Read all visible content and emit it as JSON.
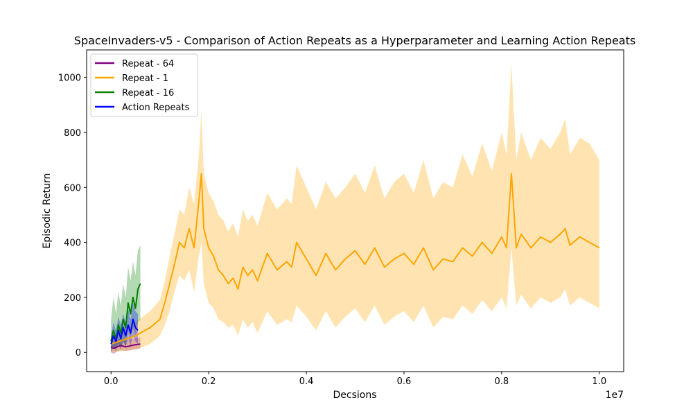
{
  "chart_data": {
    "type": "line",
    "title": "SpaceInvaders-v5 - Comparison of Action Repeats as a Hyperparameter and Learning Action Repeats",
    "xlabel": "Decsions",
    "ylabel": "Episodic Return",
    "x_offset_label": "1e7",
    "xlim": [
      -0.05,
      1.05
    ],
    "ylim": [
      -70,
      1100
    ],
    "x_ticks": [
      0.0,
      0.2,
      0.4,
      0.6,
      0.8,
      1.0
    ],
    "x_tick_labels": [
      "0.0",
      "0.2",
      "0.4",
      "0.6",
      "0.8",
      "1.0"
    ],
    "y_ticks": [
      0,
      200,
      400,
      600,
      800,
      1000
    ],
    "y_tick_labels": [
      "0",
      "200",
      "400",
      "600",
      "800",
      "1000"
    ],
    "grid": false,
    "legend_position": "top-left",
    "series": [
      {
        "name": "Repeat - 64",
        "color": "#800080",
        "x": [
          0.0,
          0.005,
          0.01,
          0.015,
          0.02,
          0.03,
          0.04,
          0.05,
          0.06
        ],
        "mean": [
          20,
          15,
          18,
          22,
          25,
          20,
          24,
          28,
          30
        ],
        "lower": [
          0,
          -5,
          0,
          5,
          8,
          5,
          8,
          12,
          14
        ],
        "upper": [
          45,
          40,
          42,
          48,
          50,
          45,
          48,
          52,
          55
        ]
      },
      {
        "name": "Repeat - 1",
        "color": "#ffa500",
        "x": [
          0.0,
          0.05,
          0.08,
          0.1,
          0.11,
          0.12,
          0.13,
          0.14,
          0.15,
          0.16,
          0.17,
          0.18,
          0.185,
          0.19,
          0.2,
          0.21,
          0.22,
          0.23,
          0.24,
          0.25,
          0.26,
          0.27,
          0.28,
          0.29,
          0.3,
          0.32,
          0.34,
          0.36,
          0.37,
          0.38,
          0.4,
          0.42,
          0.44,
          0.46,
          0.48,
          0.5,
          0.52,
          0.54,
          0.56,
          0.58,
          0.6,
          0.62,
          0.64,
          0.66,
          0.68,
          0.7,
          0.72,
          0.74,
          0.76,
          0.78,
          0.8,
          0.81,
          0.82,
          0.83,
          0.84,
          0.86,
          0.88,
          0.9,
          0.92,
          0.93,
          0.94,
          0.96,
          0.98,
          1.0
        ],
        "mean": [
          30,
          60,
          90,
          120,
          180,
          250,
          320,
          400,
          380,
          450,
          380,
          550,
          650,
          450,
          380,
          350,
          300,
          280,
          250,
          270,
          230,
          310,
          280,
          300,
          260,
          360,
          300,
          330,
          310,
          400,
          340,
          280,
          360,
          300,
          340,
          370,
          320,
          380,
          310,
          340,
          360,
          320,
          380,
          300,
          340,
          330,
          380,
          350,
          400,
          360,
          420,
          380,
          650,
          380,
          430,
          380,
          420,
          400,
          430,
          450,
          390,
          420,
          400,
          380
        ],
        "lower": [
          0,
          10,
          30,
          60,
          100,
          150,
          220,
          280,
          260,
          300,
          220,
          350,
          400,
          250,
          180,
          160,
          120,
          110,
          90,
          100,
          60,
          120,
          90,
          110,
          70,
          150,
          100,
          120,
          110,
          170,
          130,
          80,
          150,
          90,
          130,
          160,
          110,
          170,
          100,
          130,
          150,
          110,
          170,
          90,
          130,
          120,
          170,
          140,
          190,
          150,
          200,
          160,
          380,
          170,
          210,
          160,
          200,
          180,
          200,
          230,
          170,
          200,
          180,
          160
        ],
        "upper": [
          60,
          110,
          150,
          190,
          260,
          350,
          430,
          520,
          500,
          600,
          540,
          720,
          880,
          650,
          580,
          550,
          500,
          480,
          440,
          470,
          420,
          520,
          480,
          500,
          460,
          580,
          520,
          560,
          540,
          680,
          600,
          520,
          620,
          560,
          600,
          650,
          580,
          680,
          560,
          620,
          650,
          580,
          700,
          560,
          620,
          600,
          720,
          640,
          760,
          660,
          800,
          720,
          1050,
          700,
          800,
          700,
          780,
          740,
          800,
          850,
          720,
          780,
          760,
          700
        ]
      },
      {
        "name": "Repeat - 16",
        "color": "#008000",
        "x": [
          0.0,
          0.005,
          0.01,
          0.015,
          0.02,
          0.025,
          0.03,
          0.035,
          0.04,
          0.045,
          0.05,
          0.055,
          0.06
        ],
        "mean": [
          40,
          80,
          50,
          100,
          70,
          120,
          90,
          180,
          140,
          200,
          160,
          230,
          250
        ],
        "lower": [
          0,
          20,
          5,
          30,
          10,
          40,
          20,
          80,
          50,
          90,
          60,
          110,
          120
        ],
        "upper": [
          120,
          200,
          140,
          220,
          170,
          250,
          200,
          310,
          260,
          330,
          280,
          370,
          390
        ]
      },
      {
        "name": "Action Repeats",
        "color": "#0000ff",
        "x": [
          0.0,
          0.005,
          0.01,
          0.015,
          0.02,
          0.025,
          0.03,
          0.035,
          0.04,
          0.045,
          0.05,
          0.055
        ],
        "mean": [
          30,
          60,
          40,
          80,
          50,
          90,
          60,
          100,
          70,
          120,
          90,
          80
        ],
        "lower": [
          5,
          20,
          10,
          30,
          15,
          40,
          20,
          50,
          25,
          60,
          40,
          30
        ],
        "upper": [
          60,
          110,
          80,
          130,
          100,
          140,
          110,
          160,
          120,
          180,
          150,
          140
        ]
      }
    ]
  }
}
